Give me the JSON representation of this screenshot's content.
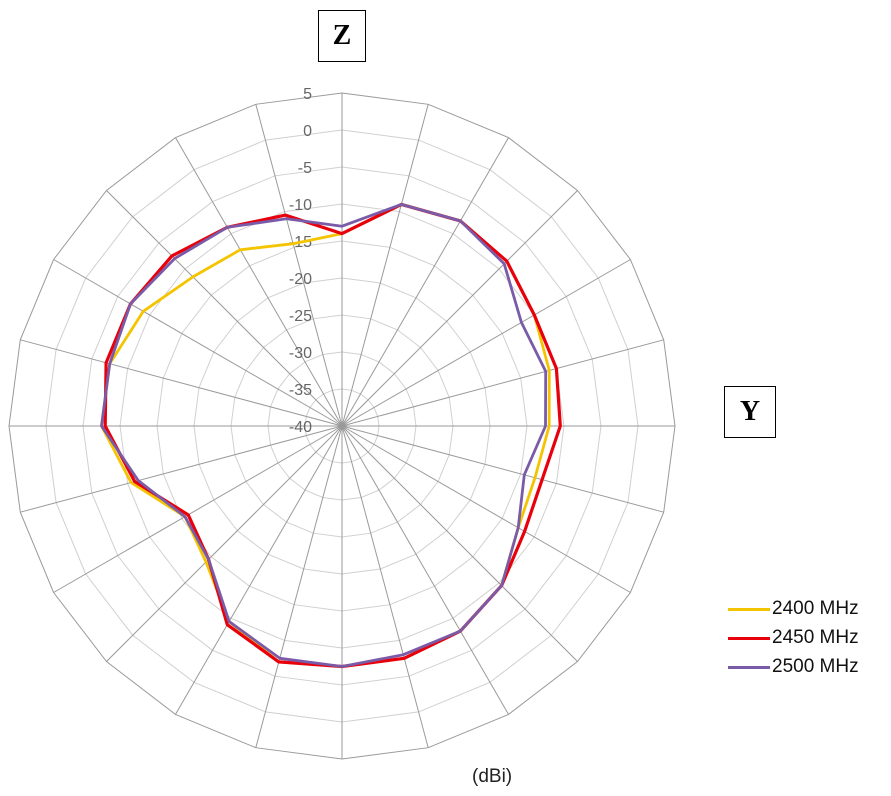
{
  "labels": {
    "z_axis": "Z",
    "y_axis": "Y",
    "unit": "(dBi)"
  },
  "chart_data": {
    "type": "radar",
    "radial_axis": {
      "min": -40,
      "max": 5,
      "step": 5,
      "tick_labels": [
        "5",
        "0",
        "-5",
        "-10",
        "-15",
        "-20",
        "-25",
        "-30",
        "-35",
        "-40"
      ]
    },
    "angular_divisions": 24,
    "angle_step_deg": 15,
    "grid": true,
    "legend_position": "bottom-right",
    "series": [
      {
        "name": "2400 MHz",
        "color": "#f5c400",
        "values": [
          -14,
          -9,
          -8,
          -8.5,
          -10,
          -11,
          -12,
          -13,
          -12.5,
          -9.5,
          -8,
          -7.5,
          -7.5,
          -7,
          -9.5,
          -14,
          -15.5,
          -10.5,
          -7.5,
          -7.5,
          -9,
          -11.5,
          -12.5,
          -14.5
        ]
      },
      {
        "name": "2450 MHz",
        "color": "#e8000b",
        "values": [
          -14,
          -9,
          -8,
          -8.5,
          -10,
          -10,
          -10.5,
          -12,
          -11.5,
          -9.5,
          -8,
          -7.5,
          -7.5,
          -7,
          -9,
          -14.5,
          -16,
          -11,
          -8,
          -7,
          -7,
          -7.5,
          -9,
          -10.5
        ]
      },
      {
        "name": "2500 MHz",
        "color": "#7a5ba8",
        "values": [
          -13,
          -9,
          -8,
          -9,
          -12,
          -11.5,
          -12.5,
          -14.5,
          -12.5,
          -9.5,
          -8,
          -8,
          -7.5,
          -7.5,
          -9.5,
          -14.5,
          -15.5,
          -11.5,
          -7.5,
          -7.5,
          -7,
          -8,
          -9,
          -11
        ]
      }
    ]
  }
}
